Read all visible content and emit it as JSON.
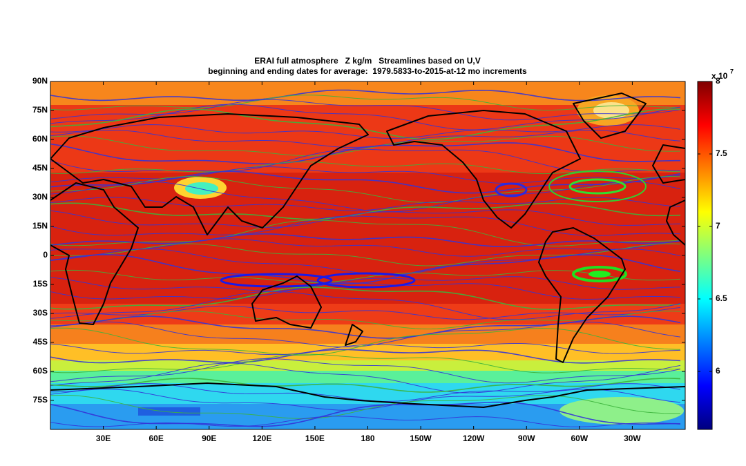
{
  "chart_data": {
    "type": "map",
    "title": "ERAI full atmosphere   Z kg/m   Streamlines based on U,V",
    "subtitle": "beginning and ending dates for average:  1979.5833-to-2015-at-12 mo increments",
    "xlim": [
      0,
      360
    ],
    "xticks": [
      {
        "value": 30,
        "label": "30E"
      },
      {
        "value": 60,
        "label": "60E"
      },
      {
        "value": 90,
        "label": "90E"
      },
      {
        "value": 120,
        "label": "120E"
      },
      {
        "value": 150,
        "label": "150E"
      },
      180,
      {
        "value": 210,
        "label": "150W"
      },
      {
        "value": 240,
        "label": "120W"
      },
      {
        "value": 270,
        "label": "90W"
      },
      {
        "value": 300,
        "label": "60W"
      },
      {
        "value": 330,
        "label": "30W"
      }
    ],
    "ylim": [
      -90,
      90
    ],
    "yticks": [
      {
        "value": 90,
        "label": "90N"
      },
      {
        "value": 75,
        "label": "75N"
      },
      {
        "value": 60,
        "label": "60N"
      },
      {
        "value": 45,
        "label": "45N"
      },
      {
        "value": 30,
        "label": "30N"
      },
      {
        "value": 15,
        "label": "15N"
      },
      0,
      {
        "value": -15,
        "label": "15S"
      },
      {
        "value": -30,
        "label": "30S"
      },
      {
        "value": -45,
        "label": "45S"
      },
      {
        "value": -60,
        "label": "60S"
      },
      {
        "value": -75,
        "label": "75S"
      }
    ],
    "colorbar": {
      "lim": [
        5.6,
        8
      ],
      "ticks": [
        6,
        6.5,
        7,
        7.5,
        8
      ],
      "multiplier_label": "x 10",
      "exponent": "7",
      "colors": [
        "#00007f",
        "#0000ff",
        "#007fff",
        "#00ffff",
        "#7fff7f",
        "#ffff00",
        "#ff7f00",
        "#ff0000",
        "#7f0000"
      ]
    }
  }
}
